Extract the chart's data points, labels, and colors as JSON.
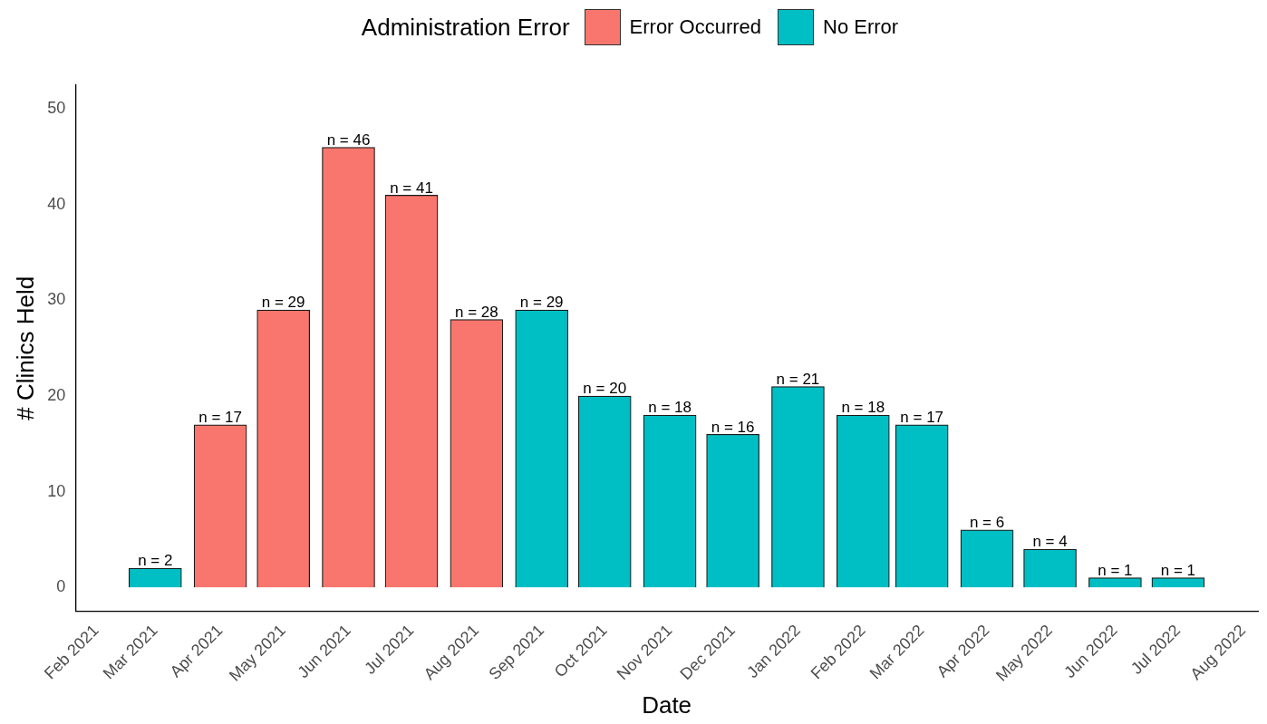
{
  "chart_data": {
    "type": "bar",
    "xlabel": "Date",
    "ylabel": "# Clinics Held",
    "legend_title": "Administration Error",
    "legend": "top",
    "x": [
      "2021-03",
      "2021-04",
      "2021-05",
      "2021-06",
      "2021-07",
      "2021-08",
      "2021-09",
      "2021-10",
      "2021-11",
      "2021-12",
      "2022-01",
      "2022-02",
      "2022-03",
      "2022-04",
      "2022-05",
      "2022-06",
      "2022-07"
    ],
    "series": [
      {
        "name": "Error Occurred",
        "color": "#f8766d",
        "values": [
          null,
          17,
          29,
          46,
          41,
          28,
          null,
          null,
          null,
          null,
          null,
          null,
          null,
          null,
          null,
          null,
          null
        ],
        "value_labels": [
          null,
          "n = 17",
          "n = 29",
          "n = 46",
          "n = 41",
          "n = 28",
          null,
          null,
          null,
          null,
          null,
          null,
          null,
          null,
          null,
          null,
          null
        ]
      },
      {
        "name": "No Error",
        "color": "#00bfc4",
        "values": [
          2,
          null,
          null,
          null,
          null,
          null,
          29,
          20,
          18,
          16,
          21,
          18,
          17,
          6,
          4,
          1,
          1
        ],
        "value_labels": [
          "n = 2",
          null,
          null,
          null,
          null,
          null,
          "n = 29",
          "n = 20",
          "n = 18",
          "n = 16",
          "n = 21",
          "n = 18",
          "n = 17",
          "n = 6",
          "n = 4",
          "n = 1",
          "n = 1"
        ]
      }
    ],
    "xlim": [
      "2021-01-22",
      "2022-08-08"
    ],
    "xticks": [
      {
        "value": "2021-02",
        "label": "Feb 2021"
      },
      {
        "value": "2021-03",
        "label": "Mar 2021"
      },
      {
        "value": "2021-04",
        "label": "Apr 2021"
      },
      {
        "value": "2021-05",
        "label": "May 2021"
      },
      {
        "value": "2021-06",
        "label": "Jun 2021"
      },
      {
        "value": "2021-07",
        "label": "Jul 2021"
      },
      {
        "value": "2021-08",
        "label": "Aug 2021"
      },
      {
        "value": "2021-09",
        "label": "Sep 2021"
      },
      {
        "value": "2021-10",
        "label": "Oct 2021"
      },
      {
        "value": "2021-11",
        "label": "Nov 2021"
      },
      {
        "value": "2021-12",
        "label": "Dec 2021"
      },
      {
        "value": "2022-01",
        "label": "Jan 2022"
      },
      {
        "value": "2022-02",
        "label": "Feb 2022"
      },
      {
        "value": "2022-03",
        "label": "Mar 2022"
      },
      {
        "value": "2022-04",
        "label": "Apr 2022"
      },
      {
        "value": "2022-05",
        "label": "May 2022"
      },
      {
        "value": "2022-06",
        "label": "Jun 2022"
      },
      {
        "value": "2022-07",
        "label": "Jul 2022"
      },
      {
        "value": "2022-08",
        "label": "Aug 2022"
      }
    ],
    "ylim": [
      -2.5,
      52.5
    ],
    "yticks": [
      0,
      10,
      20,
      30,
      40,
      50
    ],
    "grid": false
  }
}
